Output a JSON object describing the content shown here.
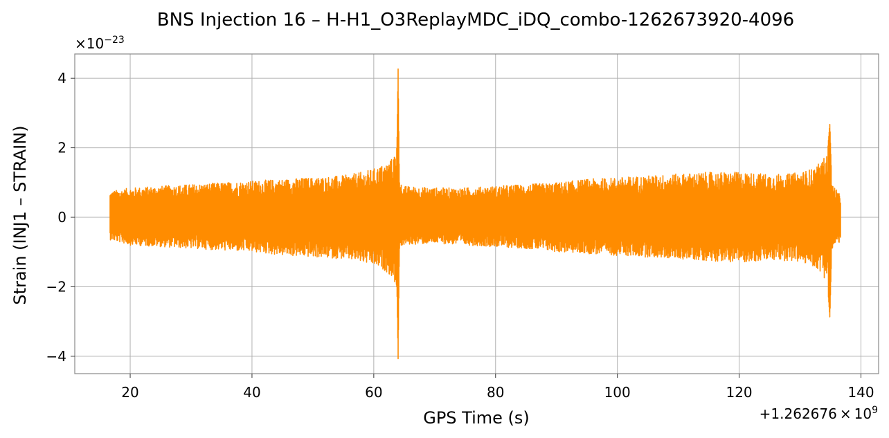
{
  "chart_data": {
    "type": "line",
    "title": "BNS Injection 16 – H-H1_O3ReplayMDC_iDQ_combo-1262673920-4096",
    "xlabel": "GPS Time (s)",
    "ylabel": "Strain (INJ1 – STRAIN)",
    "x_offset_label": "+1.262676×10⁹",
    "x_offset_parts": [
      "+1.262676",
      "×",
      "10",
      "9"
    ],
    "y_scale_label": "×10⁻²³",
    "y_scale_parts": [
      "×10",
      "−23"
    ],
    "xlim": [
      10.9,
      142.9
    ],
    "ylim": [
      -4.5,
      4.7
    ],
    "grid": true,
    "line_color": "#ff8c00",
    "x_ticks": [
      20,
      40,
      60,
      80,
      100,
      120,
      140
    ],
    "x_tick_labels": [
      "20",
      "40",
      "60",
      "80",
      "100",
      "120",
      "140"
    ],
    "y_ticks": [
      -4,
      -2,
      0,
      2,
      4
    ],
    "y_tick_labels": [
      "−4",
      "−2",
      "0",
      "2",
      "4"
    ],
    "series": [
      {
        "x": [
          16.7,
          20,
          25,
          30,
          35,
          40,
          45,
          50,
          55,
          58,
          60,
          62,
          63,
          63.8,
          64.0,
          64.2,
          65,
          70,
          75,
          80,
          85,
          90,
          95,
          100,
          105,
          110,
          115,
          120,
          125,
          128,
          130,
          132,
          133.5,
          134.5,
          134.9,
          135.2,
          136,
          136.7
        ],
        "envelope_upper": [
          0.75,
          0.85,
          0.9,
          0.95,
          1.0,
          1.05,
          1.1,
          1.15,
          1.2,
          1.3,
          1.4,
          1.55,
          1.7,
          2.0,
          4.3,
          1.0,
          0.9,
          0.85,
          0.85,
          0.9,
          0.95,
          1.0,
          1.1,
          1.15,
          1.2,
          1.25,
          1.3,
          1.3,
          1.25,
          1.25,
          1.3,
          1.4,
          1.6,
          1.9,
          2.7,
          1.0,
          0.8,
          0.6
        ],
        "envelope_lower": [
          -0.65,
          -0.8,
          -0.85,
          -0.9,
          -0.95,
          -1.0,
          -1.1,
          -1.15,
          -1.2,
          -1.3,
          -1.4,
          -1.55,
          -1.75,
          -2.0,
          -4.1,
          -0.9,
          -0.8,
          -0.75,
          -0.8,
          -0.85,
          -0.9,
          -1.0,
          -1.05,
          -1.1,
          -1.15,
          -1.2,
          -1.25,
          -1.3,
          -1.25,
          -1.25,
          -1.3,
          -1.4,
          -1.6,
          -1.9,
          -2.9,
          -0.9,
          -0.8,
          -0.7
        ]
      }
    ]
  }
}
